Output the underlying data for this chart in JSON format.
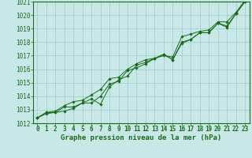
{
  "xlabel": "Graphe pression niveau de la mer (hPa)",
  "ylim": [
    1012,
    1021
  ],
  "xlim": [
    -0.5,
    23.5
  ],
  "yticks": [
    1012,
    1013,
    1014,
    1015,
    1016,
    1017,
    1018,
    1019,
    1020,
    1021
  ],
  "xticks": [
    0,
    1,
    2,
    3,
    4,
    5,
    6,
    7,
    8,
    9,
    10,
    11,
    12,
    13,
    14,
    15,
    16,
    17,
    18,
    19,
    20,
    21,
    22,
    23
  ],
  "bg_color": "#c8e8e8",
  "grid_color": "#a0c8c8",
  "line_color": "#1a6b1a",
  "line1_y": [
    1012.4,
    1012.8,
    1012.8,
    1012.9,
    1013.1,
    1013.5,
    1013.5,
    1014.0,
    1014.9,
    1015.1,
    1015.9,
    1016.1,
    1016.4,
    1016.8,
    1017.1,
    1016.7,
    1017.9,
    1018.2,
    1018.7,
    1018.7,
    1019.4,
    1019.1,
    1020.1,
    1021.0
  ],
  "line2_y": [
    1012.4,
    1012.7,
    1012.8,
    1013.2,
    1013.2,
    1013.5,
    1013.8,
    1013.4,
    1014.7,
    1015.2,
    1015.5,
    1016.3,
    1016.5,
    1016.8,
    1017.1,
    1016.7,
    1018.0,
    1018.2,
    1018.7,
    1018.7,
    1019.4,
    1019.2,
    1020.1,
    1021.0
  ],
  "line3_y": [
    1012.4,
    1012.8,
    1012.9,
    1013.3,
    1013.6,
    1013.7,
    1014.1,
    1014.5,
    1015.3,
    1015.4,
    1016.0,
    1016.4,
    1016.7,
    1016.8,
    1017.0,
    1016.9,
    1018.4,
    1018.6,
    1018.8,
    1018.9,
    1019.5,
    1019.5,
    1020.2,
    1021.1
  ],
  "tick_fontsize": 5.5,
  "xlabel_fontsize": 6.5,
  "marker_size": 1.8,
  "line_width": 0.7
}
